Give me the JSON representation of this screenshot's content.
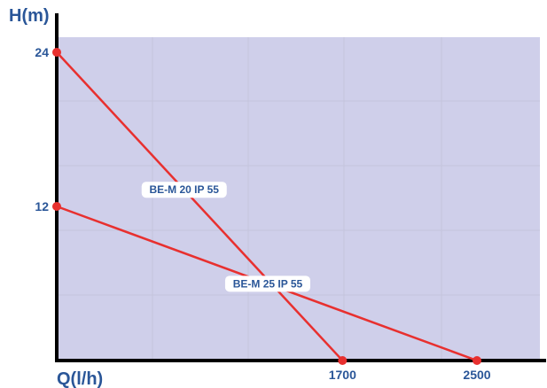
{
  "chart_data": {
    "type": "line",
    "xlabel": "Q(l/h)",
    "ylabel": "H(m)",
    "xlim": [
      0,
      2500
    ],
    "ylim": [
      0,
      24
    ],
    "x_ticks": [
      "1700",
      "2500"
    ],
    "y_ticks": [
      "24",
      "12"
    ],
    "grid": true,
    "colors": {
      "plot_background": "#cfcfea",
      "line": "#e8302f",
      "point": "#e8302f",
      "text": "#2a5698",
      "axis": "#000000"
    },
    "series": [
      {
        "name": "BE-M 20 IP 55",
        "x": [
          0,
          1700
        ],
        "y": [
          24,
          0
        ]
      },
      {
        "name": "BE-M 25 IP 55",
        "x": [
          0,
          2500
        ],
        "y": [
          12,
          0
        ]
      }
    ]
  }
}
